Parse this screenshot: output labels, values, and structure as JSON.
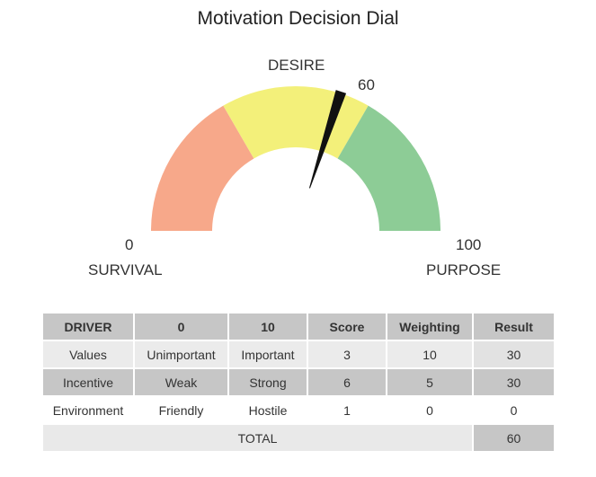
{
  "title": "Motivation Decision Dial",
  "chart_data": {
    "type": "gauge",
    "min": 0,
    "max": 100,
    "value": 60,
    "value_label": "60",
    "min_label": "0",
    "max_label": "100",
    "zones": [
      {
        "name": "SURVIVAL",
        "from": 0,
        "to": 33.3,
        "color": "#f7a88a"
      },
      {
        "name": "DESIRE",
        "from": 33.3,
        "to": 66.7,
        "color": "#f3f07a"
      },
      {
        "name": "PURPOSE",
        "from": 66.7,
        "to": 100,
        "color": "#8dcc96"
      }
    ],
    "zone_labels": {
      "left": "SURVIVAL",
      "top": "DESIRE",
      "right": "PURPOSE"
    }
  },
  "table": {
    "headers": [
      "DRIVER",
      "0",
      "10",
      "Score",
      "Weighting",
      "Result"
    ],
    "rows": [
      [
        "Values",
        "Unimportant",
        "Important",
        "3",
        "10",
        "30"
      ],
      [
        "Incentive",
        "Weak",
        "Strong",
        "6",
        "5",
        "30"
      ],
      [
        "Environment",
        "Friendly",
        "Hostile",
        "1",
        "0",
        "0"
      ]
    ],
    "total_label": "TOTAL",
    "total_value": "60"
  }
}
